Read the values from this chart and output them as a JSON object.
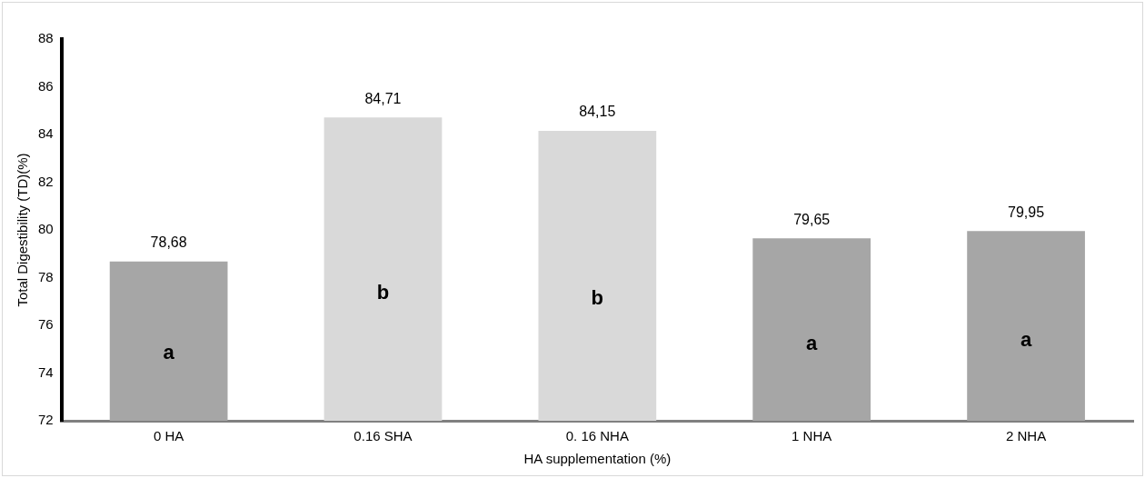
{
  "chart_data": {
    "type": "bar",
    "xlabel": "HA supplementation (%)",
    "ylabel": "Total Digestibility (TD)(%)",
    "categories": [
      "0 HA",
      "0.16 SHA",
      "0. 16 NHA",
      "1 NHA",
      "2 NHA"
    ],
    "values": [
      78.68,
      84.71,
      84.15,
      79.65,
      79.95
    ],
    "value_labels": [
      "78,68",
      "84,71",
      "84,15",
      "79,65",
      "79,95"
    ],
    "colors": [
      "#a6a6a6",
      "#d9d9d9",
      "#d9d9d9",
      "#a6a6a6",
      "#a6a6a6"
    ],
    "ylim": [
      72,
      88
    ],
    "yticks": [
      72,
      74,
      76,
      78,
      80,
      82,
      84,
      86,
      88
    ],
    "grid": false,
    "legend": false,
    "annotations": [
      "a",
      "b",
      "b",
      "a",
      "a"
    ]
  }
}
